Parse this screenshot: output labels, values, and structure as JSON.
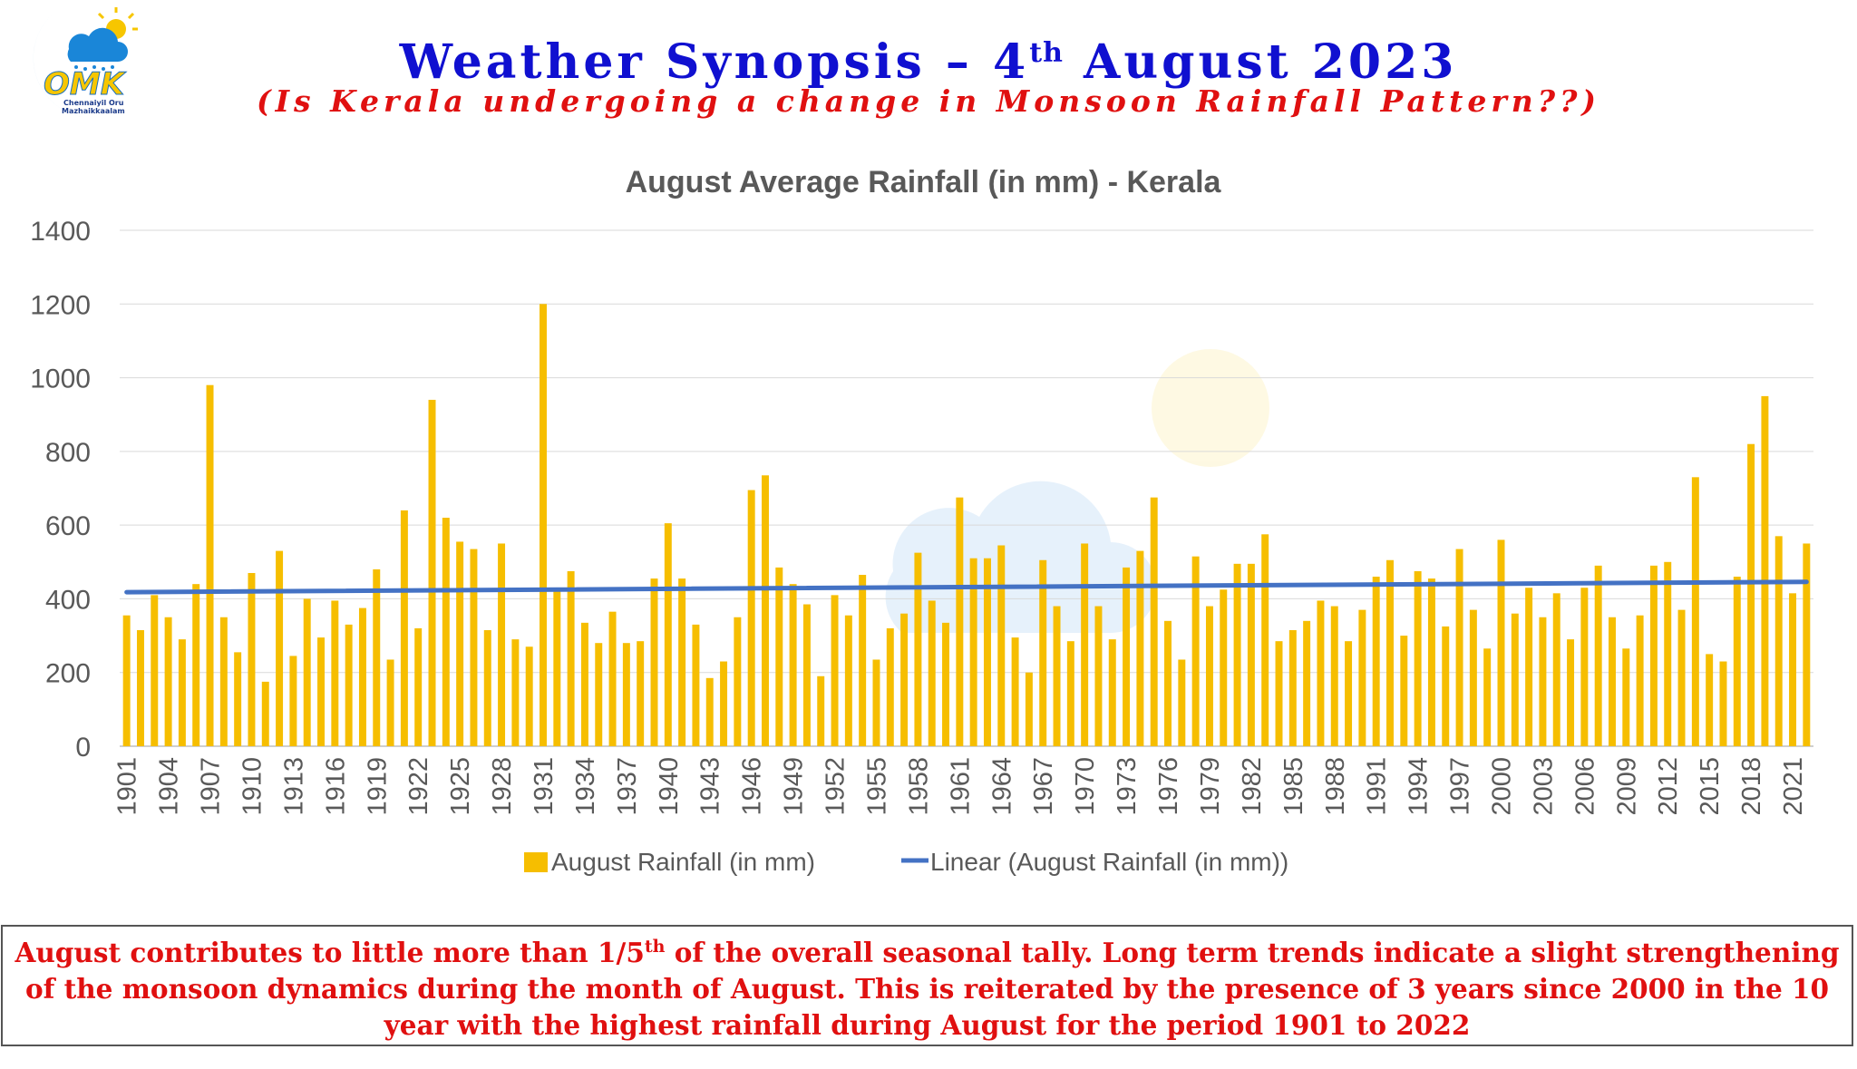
{
  "header": {
    "title_before": "Weather Synopsis – 4",
    "title_sup": "th",
    "title_after": " August 2023",
    "subtitle": "(Is Kerala undergoing a change in Monsoon Rainfall Pattern??)"
  },
  "logo": {
    "text": "OMK",
    "line1": "Chennaiyil Oru",
    "line2": "Mazhaikkaalam"
  },
  "note": {
    "before_sup": "August contributes to little more than 1/5",
    "sup": "th",
    "after_sup": " of the overall seasonal tally. Long term trends indicate a slight strengthening of the monsoon dynamics during the month of August. This is reiterated by the presence of 3 years since 2000 in the 10 year with the highest rainfall during August for the period 1901 to 2022"
  },
  "colors": {
    "bar": "#F6BE00",
    "trend": "#4472C4",
    "title_blue": "#1010d0",
    "title_red": "#e01010"
  },
  "chart_data": {
    "type": "bar",
    "title": "August Average Rainfall (in mm) - Kerala",
    "xlabel": "",
    "ylabel": "",
    "ylim": [
      0,
      1400
    ],
    "yticks": [
      0,
      200,
      400,
      600,
      800,
      1000,
      1200,
      1400
    ],
    "grid": true,
    "legend_position": "bottom",
    "x_start": 1901,
    "x_end": 2022,
    "x_tick_labels": [
      "1901",
      "1904",
      "1907",
      "1910",
      "1913",
      "1916",
      "1919",
      "1922",
      "1925",
      "1928",
      "1931",
      "1934",
      "1937",
      "1940",
      "1943",
      "1946",
      "1949",
      "1952",
      "1955",
      "1958",
      "1961",
      "1964",
      "1967",
      "1970",
      "1973",
      "1976",
      "1979",
      "1982",
      "1985",
      "1988",
      "1991",
      "1994",
      "1997",
      "2000",
      "2003",
      "2006",
      "2009",
      "2012",
      "2015",
      "2018",
      "2021"
    ],
    "series": [
      {
        "name": "August Rainfall (in mm)",
        "type": "bar",
        "values": [
          355,
          315,
          410,
          350,
          290,
          440,
          980,
          350,
          255,
          470,
          175,
          530,
          245,
          400,
          295,
          395,
          330,
          375,
          480,
          235,
          640,
          320,
          940,
          620,
          555,
          535,
          315,
          550,
          290,
          270,
          1200,
          420,
          475,
          335,
          280,
          365,
          280,
          285,
          455,
          605,
          455,
          330,
          185,
          230,
          350,
          695,
          735,
          485,
          440,
          385,
          190,
          410,
          355,
          465,
          235,
          320,
          360,
          525,
          395,
          335,
          675,
          510,
          510,
          545,
          295,
          200,
          505,
          380,
          285,
          550,
          380,
          290,
          485,
          530,
          675,
          340,
          235,
          515,
          380,
          425,
          495,
          495,
          575,
          285,
          315,
          340,
          395,
          380,
          285,
          370,
          460,
          505,
          300,
          475,
          455,
          325,
          535,
          370,
          265,
          560,
          360,
          430,
          350,
          415,
          290,
          430,
          490,
          350,
          265,
          355,
          490,
          500,
          370,
          730,
          250,
          230,
          460,
          820,
          950,
          570,
          415,
          550
        ]
      },
      {
        "name": "Linear (August Rainfall (in mm))",
        "type": "line",
        "start_value": 418,
        "end_value": 446
      }
    ]
  }
}
